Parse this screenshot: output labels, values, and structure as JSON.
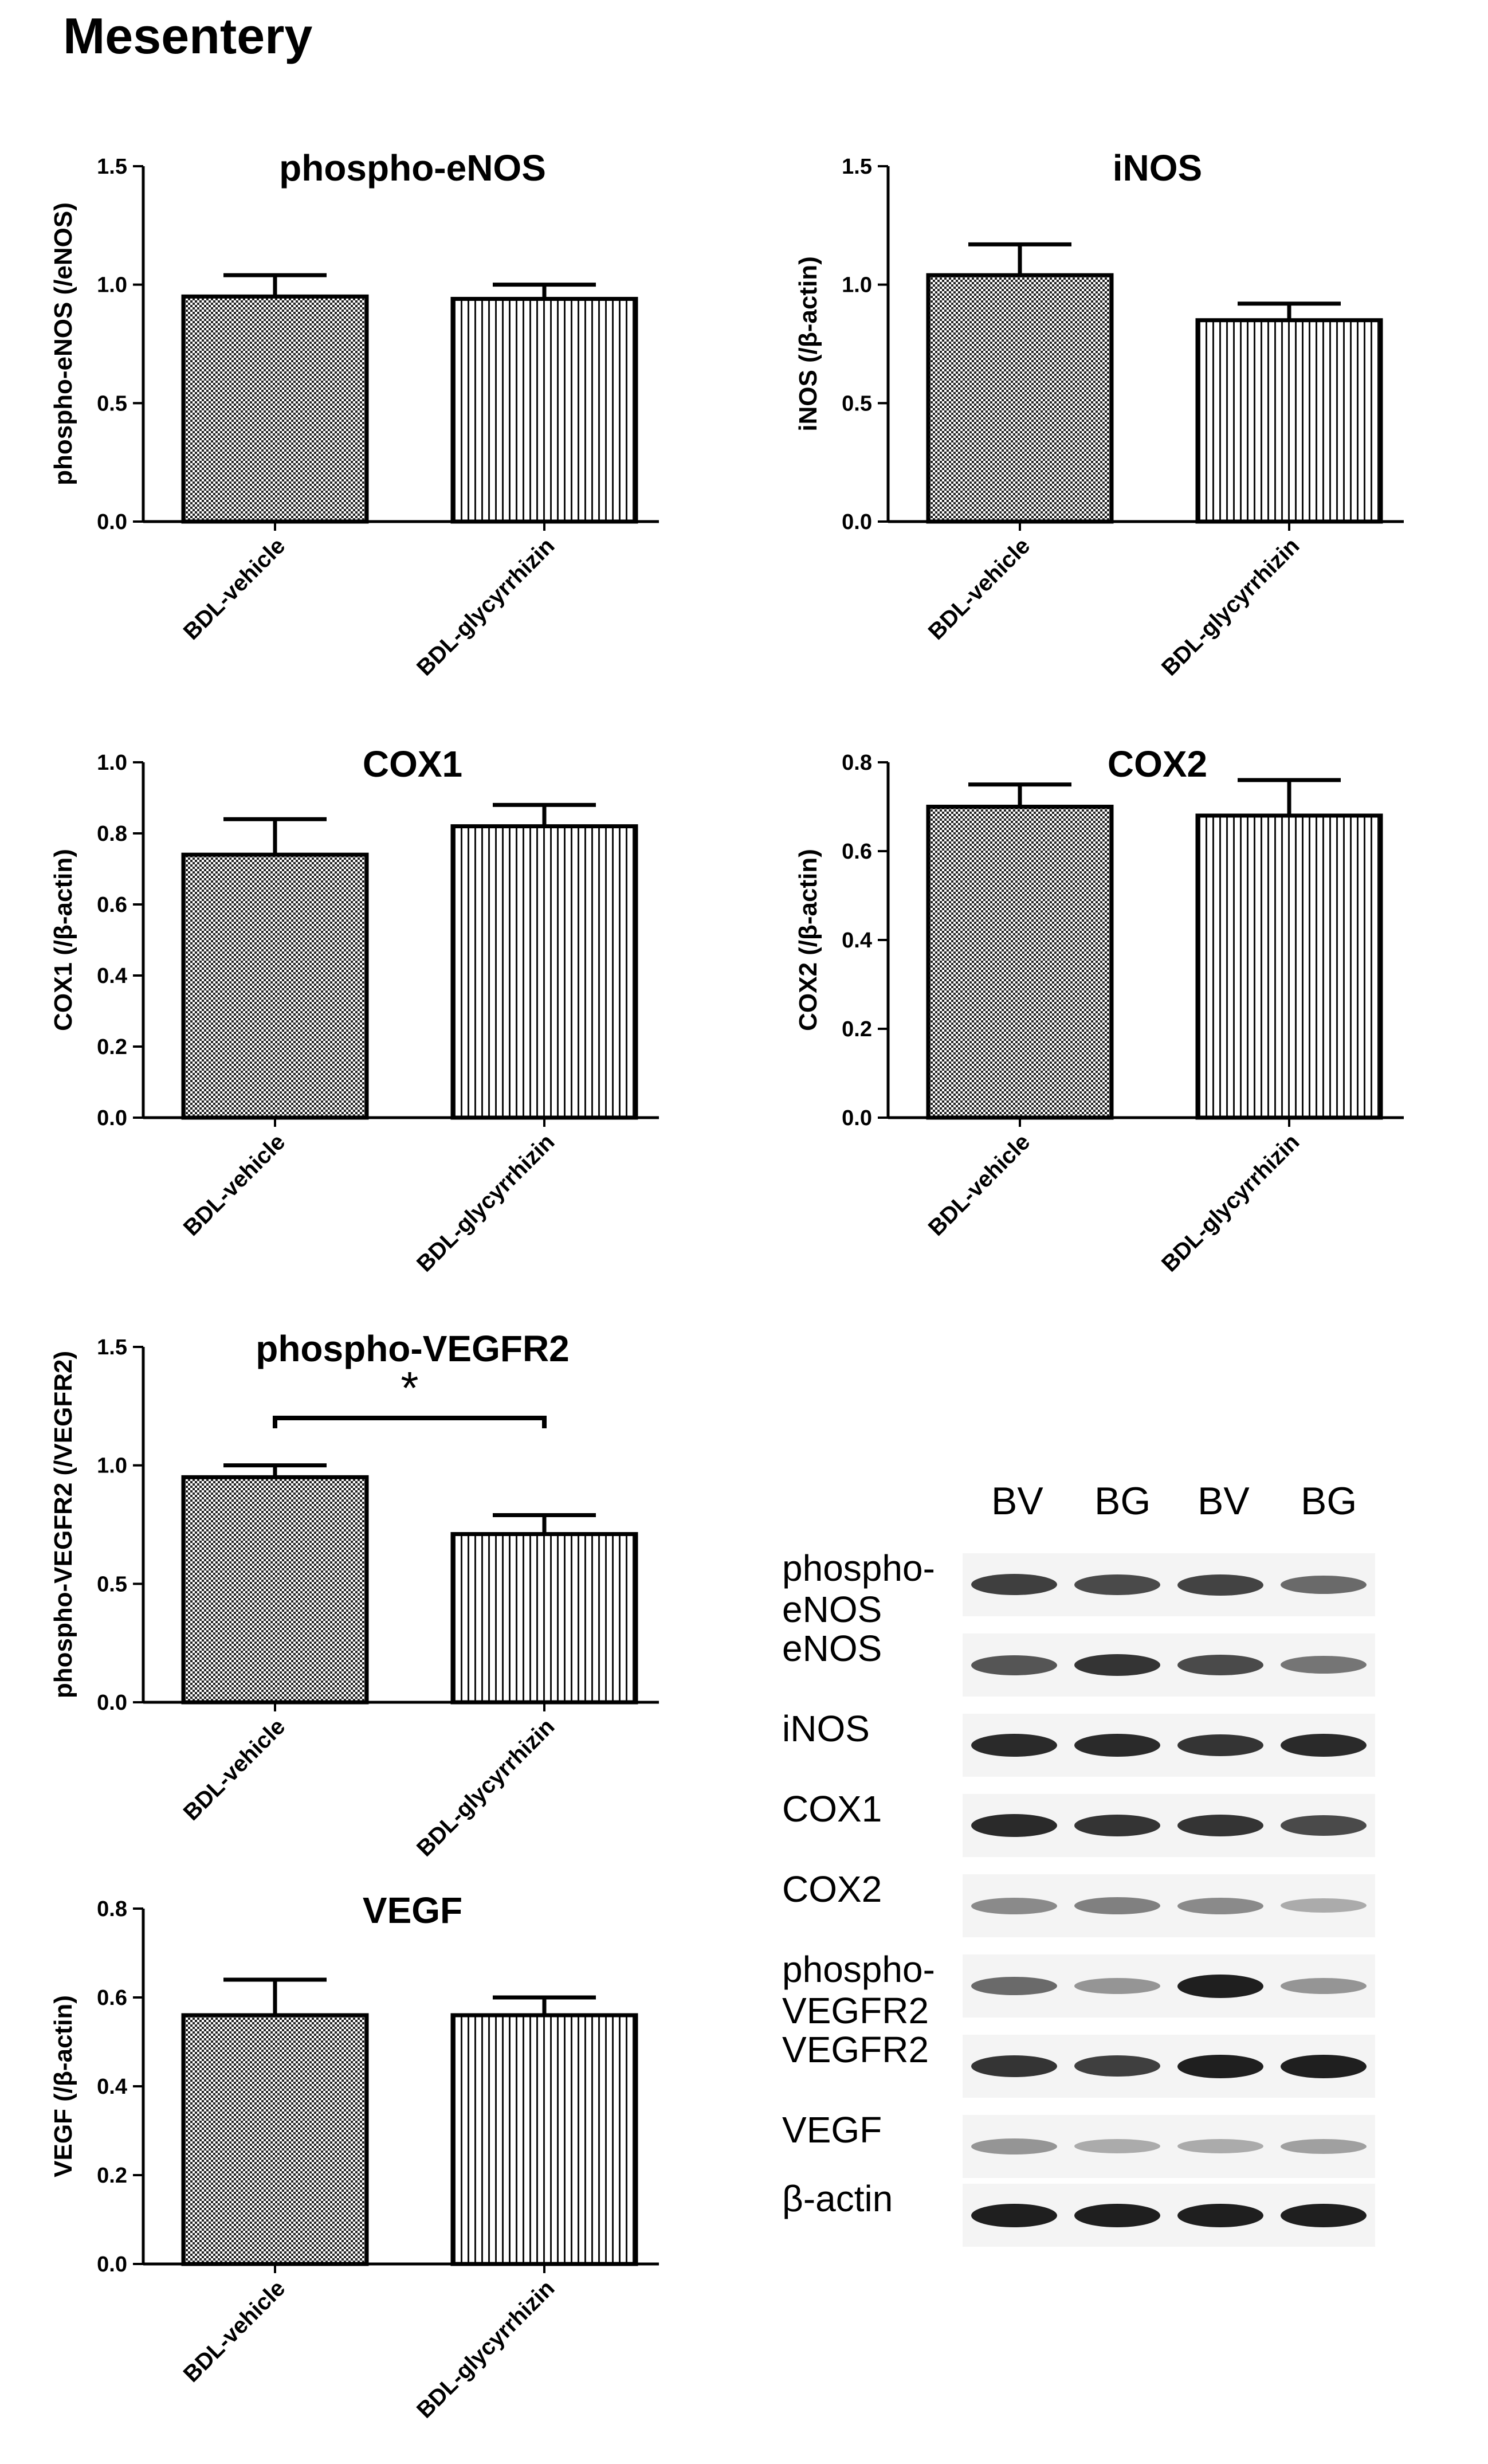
{
  "page": {
    "title": "Mesentery"
  },
  "chart_data": [
    {
      "type": "bar",
      "title": "phospho-eNOS",
      "ylabel": "phospho-eNOS (/eNOS)",
      "categories": [
        "BDL-vehicle",
        "BDL-glycyrrhizin"
      ],
      "values": [
        0.95,
        0.94
      ],
      "errors": [
        0.09,
        0.06
      ],
      "ylim": [
        0,
        1.5
      ],
      "yticks": [
        "0.0",
        "0.5",
        "1.0",
        "1.5"
      ],
      "significance": null
    },
    {
      "type": "bar",
      "title": "iNOS",
      "ylabel": "iNOS (/β-actin)",
      "categories": [
        "BDL-vehicle",
        "BDL-glycyrrhizin"
      ],
      "values": [
        1.04,
        0.85
      ],
      "errors": [
        0.13,
        0.07
      ],
      "ylim": [
        0,
        1.5
      ],
      "yticks": [
        "0.0",
        "0.5",
        "1.0",
        "1.5"
      ],
      "significance": null
    },
    {
      "type": "bar",
      "title": "COX1",
      "ylabel": "COX1 (/β-actin)",
      "categories": [
        "BDL-vehicle",
        "BDL-glycyrrhizin"
      ],
      "values": [
        0.74,
        0.82
      ],
      "errors": [
        0.1,
        0.06
      ],
      "ylim": [
        0,
        1.0
      ],
      "yticks": [
        "0.0",
        "0.2",
        "0.4",
        "0.6",
        "0.8",
        "1.0"
      ],
      "significance": null
    },
    {
      "type": "bar",
      "title": "COX2",
      "ylabel": "COX2 (/β-actin)",
      "categories": [
        "BDL-vehicle",
        "BDL-glycyrrhizin"
      ],
      "values": [
        0.7,
        0.68
      ],
      "errors": [
        0.05,
        0.08
      ],
      "ylim": [
        0,
        0.8
      ],
      "yticks": [
        "0.0",
        "0.2",
        "0.4",
        "0.6",
        "0.8"
      ],
      "significance": null
    },
    {
      "type": "bar",
      "title": "phospho-VEGFR2",
      "ylabel": "phospho-VEGFR2 (/VEGFR2)",
      "categories": [
        "BDL-vehicle",
        "BDL-glycyrrhizin"
      ],
      "values": [
        0.95,
        0.71
      ],
      "errors": [
        0.05,
        0.08
      ],
      "ylim": [
        0,
        1.5
      ],
      "yticks": [
        "0.0",
        "0.5",
        "1.0",
        "1.5"
      ],
      "significance": "*"
    },
    {
      "type": "bar",
      "title": "VEGF",
      "ylabel": "VEGF (/β-actin)",
      "categories": [
        "BDL-vehicle",
        "BDL-glycyrrhizin"
      ],
      "values": [
        0.56,
        0.56
      ],
      "errors": [
        0.08,
        0.04
      ],
      "ylim": [
        0,
        0.8
      ],
      "yticks": [
        "0.0",
        "0.2",
        "0.4",
        "0.6",
        "0.8"
      ],
      "significance": null
    }
  ],
  "blot": {
    "lanes": [
      "BV",
      "BG",
      "BV",
      "BG"
    ],
    "rows": [
      {
        "label": "phospho-\neNOS",
        "bands": [
          0.8,
          0.75,
          0.78,
          0.6
        ]
      },
      {
        "label": "eNOS",
        "bands": [
          0.7,
          0.85,
          0.75,
          0.55
        ]
      },
      {
        "label": "iNOS",
        "bands": [
          0.9,
          0.9,
          0.85,
          0.9
        ]
      },
      {
        "label": "COX1",
        "bands": [
          0.9,
          0.85,
          0.85,
          0.75
        ]
      },
      {
        "label": "COX2",
        "bands": [
          0.45,
          0.5,
          0.45,
          0.3
        ]
      },
      {
        "label": "phospho-\nVEGFR2",
        "bands": [
          0.6,
          0.4,
          0.95,
          0.4
        ]
      },
      {
        "label": "VEGFR2",
        "bands": [
          0.85,
          0.8,
          0.95,
          0.95
        ]
      },
      {
        "label": "VEGF",
        "bands": [
          0.4,
          0.3,
          0.3,
          0.35
        ]
      },
      {
        "label": "β-actin",
        "bands": [
          0.95,
          0.95,
          0.95,
          0.95
        ]
      }
    ]
  }
}
